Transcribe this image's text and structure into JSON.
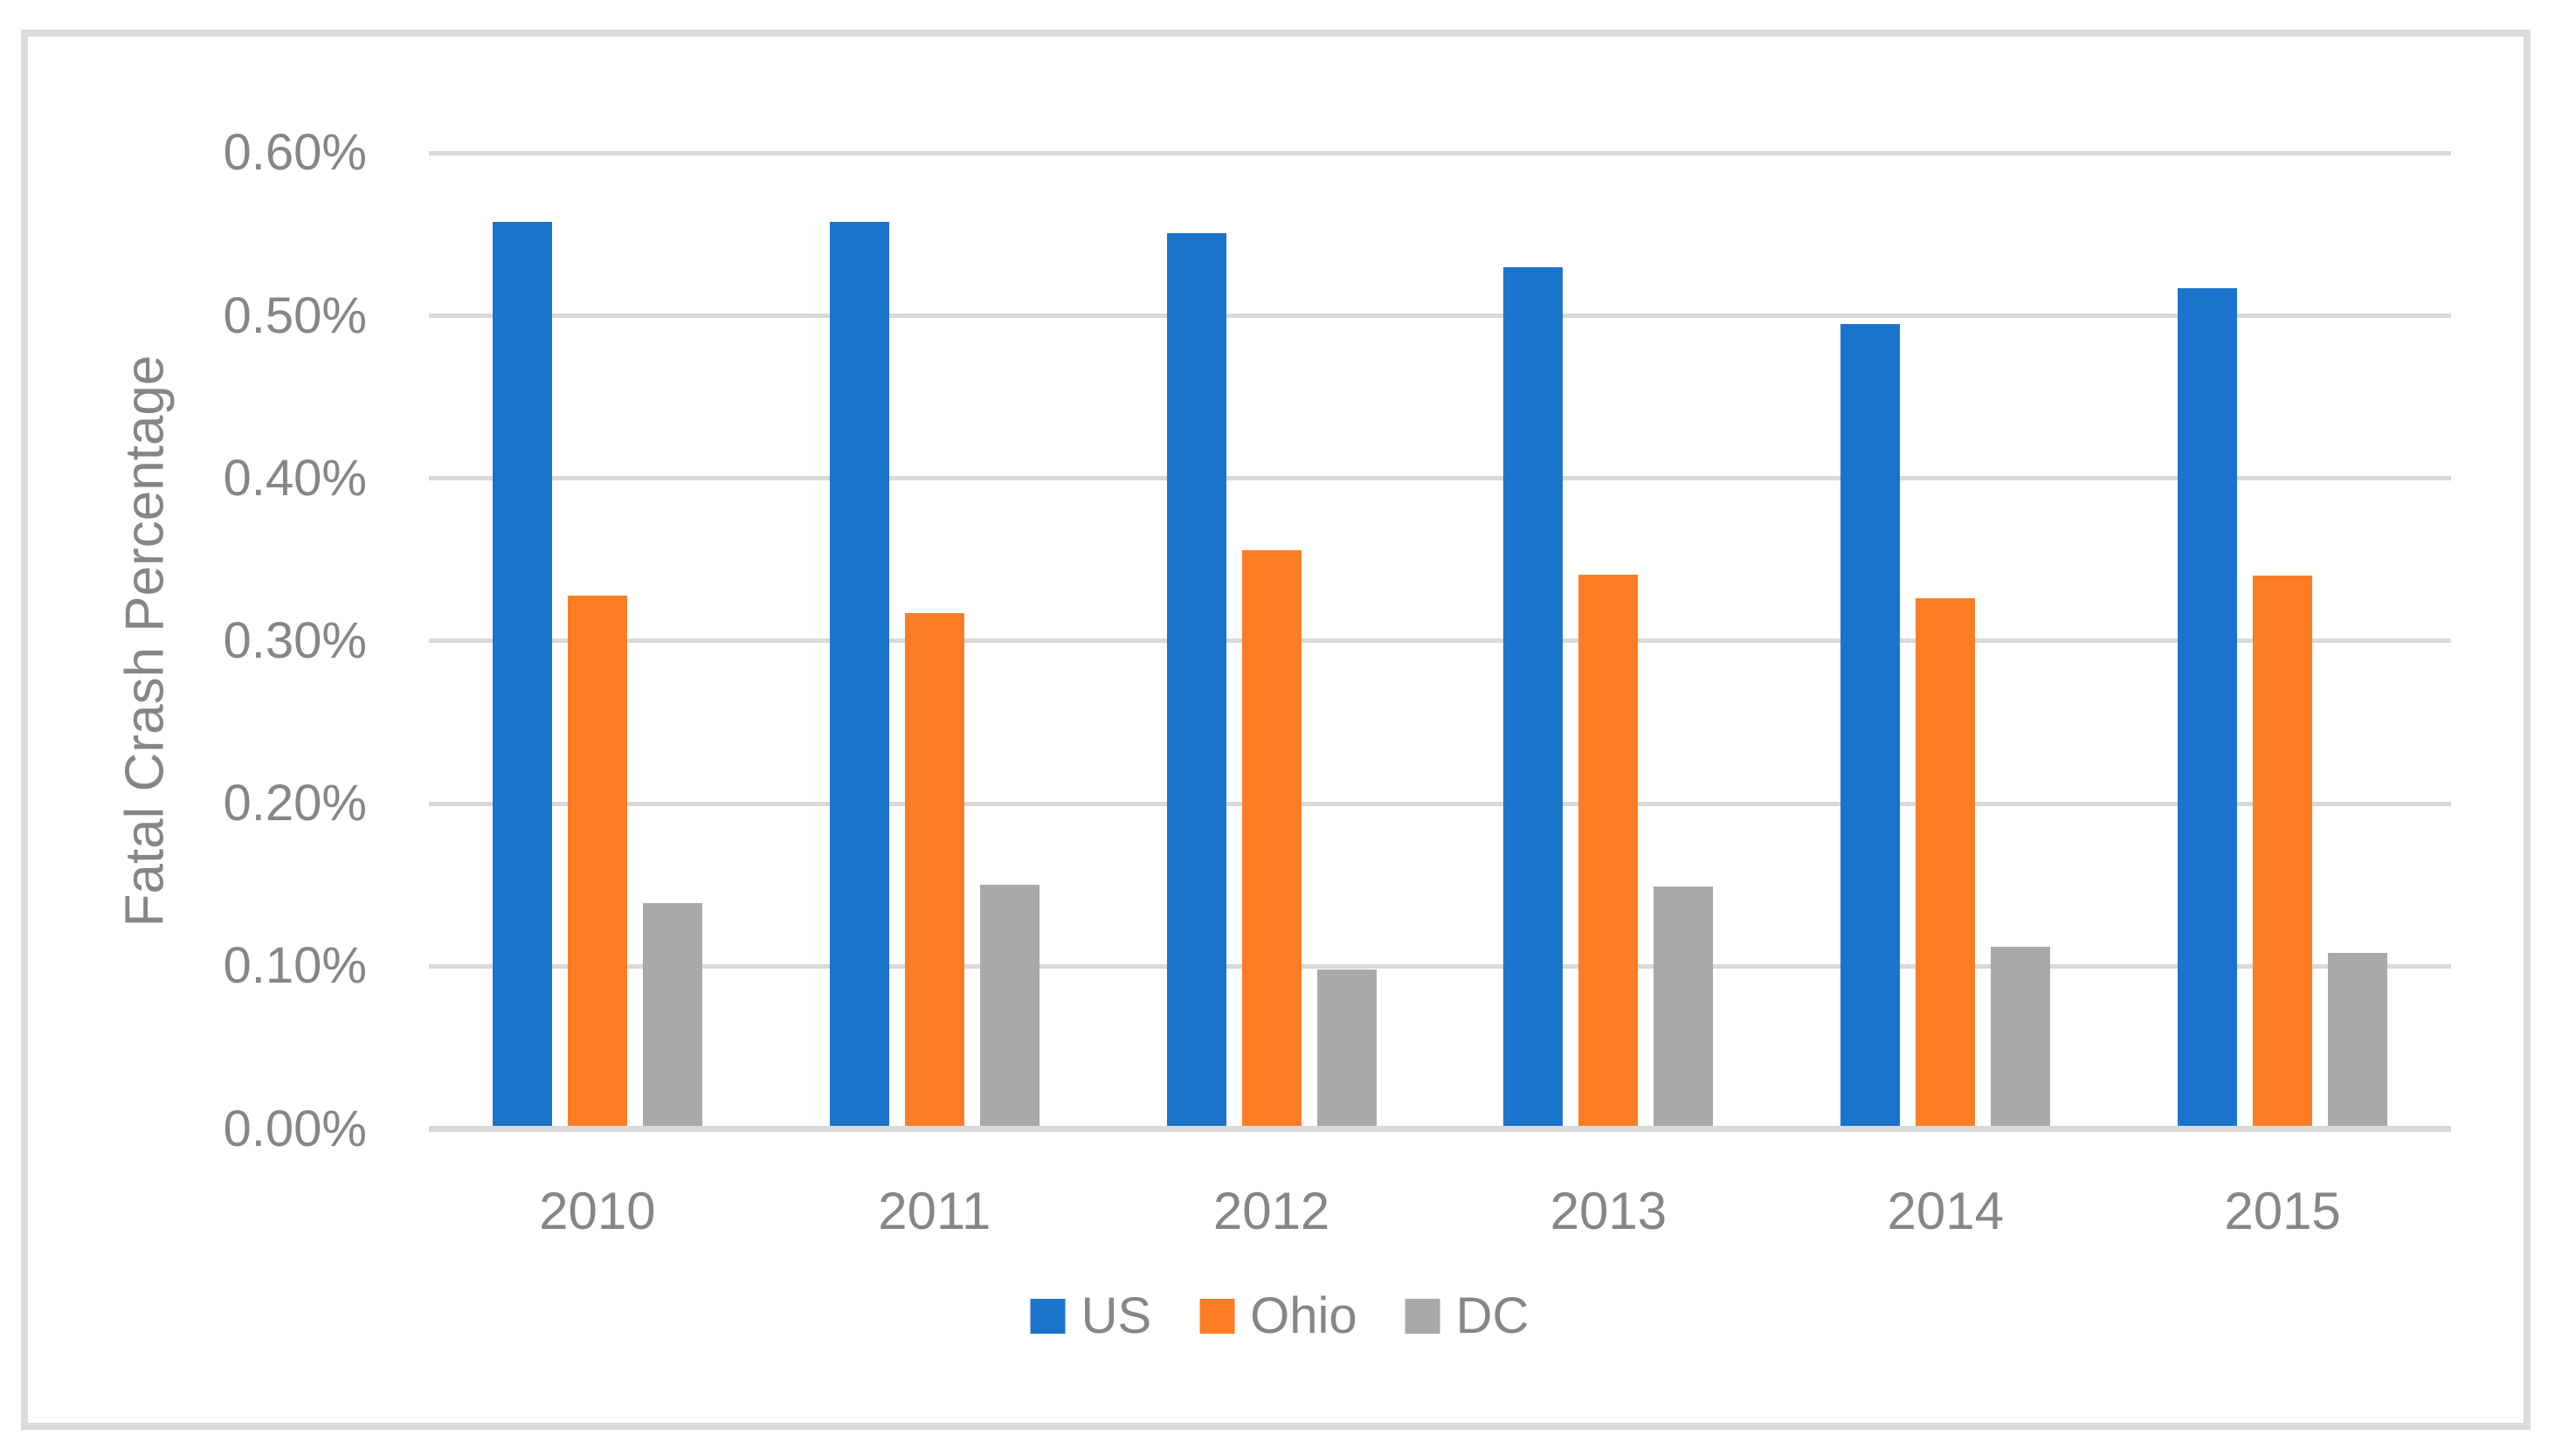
{
  "figure": {
    "background_color": "#ffffff",
    "frame_border_color": "#dbdbdb",
    "gridline_color": "#d9d9d9",
    "axis_text_color": "#868686"
  },
  "chart_data": {
    "type": "bar",
    "title": "",
    "xlabel": "",
    "ylabel": "Fatal Crash Percentage",
    "unit": "percent",
    "categories": [
      "2010",
      "2011",
      "2012",
      "2013",
      "2014",
      "2015"
    ],
    "series": [
      {
        "name": "US",
        "color": "#1b74cc",
        "values": [
          0.558,
          0.558,
          0.551,
          0.53,
          0.495,
          0.517
        ]
      },
      {
        "name": "Ohio",
        "color": "#fc7d25",
        "values": [
          0.328,
          0.317,
          0.356,
          0.341,
          0.326,
          0.34
        ]
      },
      {
        "name": "DC",
        "color": "#a9a9a9",
        "values": [
          0.139,
          0.15,
          0.098,
          0.149,
          0.112,
          0.108
        ]
      }
    ],
    "ylim": [
      0,
      0.6
    ],
    "ytick_step": 0.1,
    "ytick_labels": [
      "0.00%",
      "0.10%",
      "0.20%",
      "0.30%",
      "0.40%",
      "0.50%",
      "0.60%"
    ],
    "grid": "horizontal",
    "legend_position": "bottom-center",
    "legend_labels": [
      "US",
      "Ohio",
      "DC"
    ]
  }
}
